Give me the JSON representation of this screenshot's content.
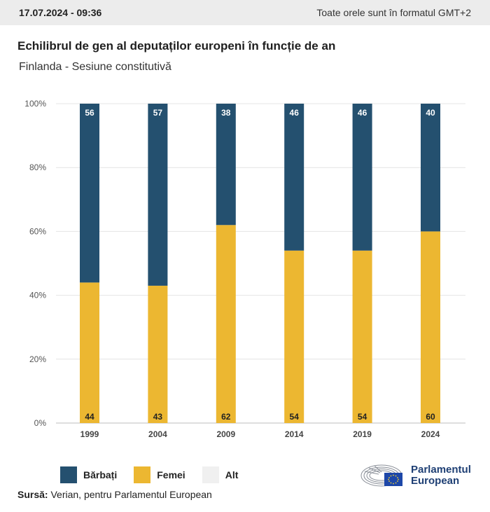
{
  "header": {
    "timestamp": "17.07.2024 - 09:36",
    "timezone_note": "Toate orele sunt în formatul GMT+2"
  },
  "title": "Echilibrul de gen al deputaților europeni în funcție de an",
  "subtitle": "Finlanda - Sesiune constitutivă",
  "chart_data": {
    "type": "bar",
    "stacked": true,
    "categories": [
      "1999",
      "2004",
      "2009",
      "2014",
      "2019",
      "2024"
    ],
    "series": [
      {
        "name": "Femei",
        "values": [
          44,
          43,
          62,
          54,
          54,
          60
        ],
        "color": "#ecb731"
      },
      {
        "name": "Bărbați",
        "values": [
          56,
          57,
          38,
          46,
          46,
          40
        ],
        "color": "#24506f"
      },
      {
        "name": "Alt",
        "values": [
          0,
          0,
          0,
          0,
          0,
          0
        ],
        "color": "#f0f0f0"
      }
    ],
    "ylim": [
      0,
      100
    ],
    "yticks": [
      "0%",
      "20%",
      "40%",
      "60%",
      "80%",
      "100%"
    ],
    "grid": true,
    "legend_position": "bottom-left"
  },
  "legend": [
    {
      "label": "Bărbați",
      "color": "#24506f"
    },
    {
      "label": "Femei",
      "color": "#ecb731"
    },
    {
      "label": "Alt",
      "color": "#f0f0f0"
    }
  ],
  "source": {
    "label": "Sursă:",
    "text": "Verian, pentru Parlamentul European"
  },
  "logo": {
    "line1": "Parlamentul",
    "line2": "European",
    "color": "#1e3f74"
  }
}
